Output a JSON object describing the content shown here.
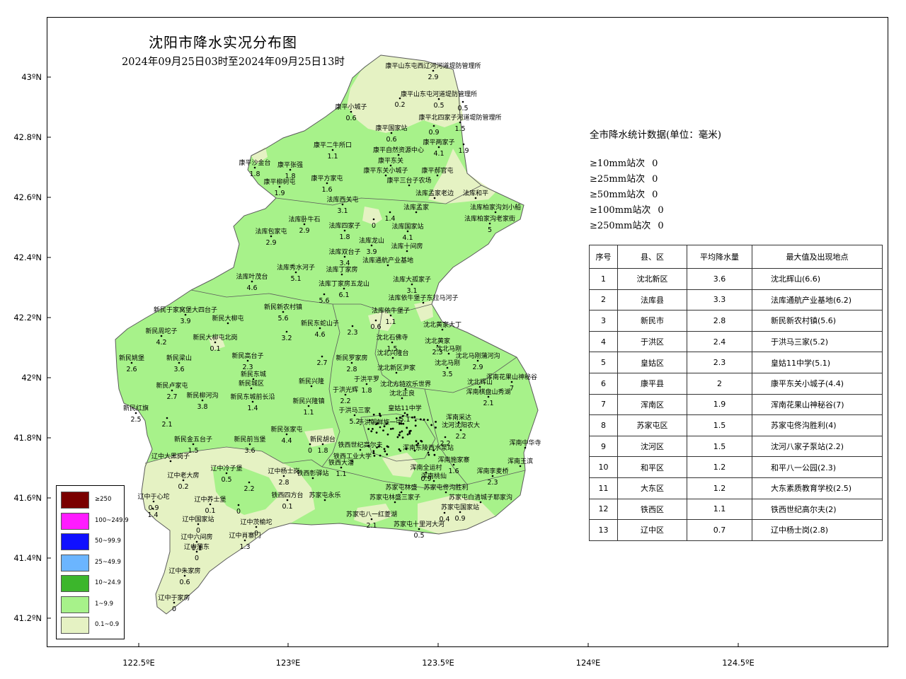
{
  "title": "沈阳市降水实况分布图",
  "subtitle": "2024年09月25日03时至2024年09月25日13时",
  "colors": {
    "light": "#a7f28a",
    "pale": "#e5f2c3",
    "boundary": "#5b5b5b",
    "c250": "#7a0000",
    "c100": "#ff1bff",
    "c50": "#1010ff",
    "c25": "#6bb5ff",
    "c10": "#3cb62c",
    "c1": "#a7f28a",
    "c01": "#e5f2c3"
  },
  "axes": {
    "lat": [
      "43ºN",
      "42.8ºN",
      "42.6ºN",
      "42.4ºN",
      "42.2ºN",
      "42ºN",
      "41.8ºN",
      "41.6ºN",
      "41.4ºN",
      "41.2ºN"
    ],
    "lon": [
      "122.5ºE",
      "123ºE",
      "123.5ºE",
      "124ºE",
      "124.5ºE"
    ]
  },
  "stats": {
    "title": "全市降水统计数据(单位：毫米)",
    "thresholds": [
      {
        "label": "≥10mm站次",
        "count": "0"
      },
      {
        "label": "≥25mm站次",
        "count": "0"
      },
      {
        "label": "≥50mm站次",
        "count": "0"
      },
      {
        "label": "≥100mm站次",
        "count": "0"
      },
      {
        "label": "≥250mm站次",
        "count": "0"
      }
    ]
  },
  "table": {
    "headers": [
      "序号",
      "县、区",
      "平均降水量",
      "最大值及出现地点"
    ],
    "rows": [
      [
        "1",
        "沈北新区",
        "3.6",
        "沈北辉山(6.6)"
      ],
      [
        "2",
        "法库县",
        "3.3",
        "法库通航产业基地(6.2)"
      ],
      [
        "3",
        "新民市",
        "2.8",
        "新民新农村镇(5.6)"
      ],
      [
        "4",
        "于洪区",
        "2.4",
        "于洪马三家(5.2)"
      ],
      [
        "5",
        "皇姑区",
        "2.3",
        "皇姑11中学(5.1)"
      ],
      [
        "6",
        "康平县",
        "2",
        "康平东关小城子(4.4)"
      ],
      [
        "7",
        "浑南区",
        "1.9",
        "浑南花果山神秘谷(7)"
      ],
      [
        "8",
        "苏家屯区",
        "1.5",
        "苏家屯佟沟胜利(4)"
      ],
      [
        "9",
        "沈河区",
        "1.5",
        "沈河八家子泵站(2.2)"
      ],
      [
        "10",
        "和平区",
        "1.2",
        "和平八一公园(2.3)"
      ],
      [
        "11",
        "大东区",
        "1.2",
        "大东素质教育学校(2.5)"
      ],
      [
        "12",
        "铁西区",
        "1.1",
        "铁西世纪高尔夫(2)"
      ],
      [
        "13",
        "辽中区",
        "0.7",
        "辽中杨士岗(2.8)"
      ]
    ]
  },
  "legend": [
    {
      "label": "≥250",
      "color": "#7a0000"
    },
    {
      "label": "100~249.9",
      "color": "#ff1bff"
    },
    {
      "label": "50~99.9",
      "color": "#1010ff"
    },
    {
      "label": "25~49.9",
      "color": "#6bb5ff"
    },
    {
      "label": "10~24.9",
      "color": "#3cb62c"
    },
    {
      "label": "1~9.9",
      "color": "#a7f28a"
    },
    {
      "label": "0.1~0.9",
      "color": "#e5f2c3"
    }
  ],
  "stations": [
    {
      "name": "康平山东屯西辽河河道堤防管理所",
      "value": "2.9"
    },
    {
      "name": "康平山东屯河道堤防管理所",
      "value": "0.5"
    },
    {
      "name": "",
      "value": "0.5"
    },
    {
      "name": "",
      "value": "0.2"
    },
    {
      "name": "康平小城子",
      "value": "0.6"
    },
    {
      "name": "康平北四家子河道堤防管理所",
      "value": "1.5"
    },
    {
      "name": "康平国家站",
      "value": "0.6"
    },
    {
      "name": "",
      "value": "0.9"
    },
    {
      "name": "康平两家子",
      "value": "4.1"
    },
    {
      "name": "",
      "value": "1.9"
    },
    {
      "name": "康平二牛所口",
      "value": "1.1"
    },
    {
      "name": "康平自然资源中心",
      "value": ""
    },
    {
      "name": "康平东关",
      "value": ""
    },
    {
      "name": "康平沙金台",
      "value": "1.8"
    },
    {
      "name": "康平张强",
      "value": "1.8"
    },
    {
      "name": "康平东关小城子",
      "value": ""
    },
    {
      "name": "康平郝官屯",
      "value": ""
    },
    {
      "name": "康平柳树屯",
      "value": "1.9"
    },
    {
      "name": "康平方家屯",
      "value": "1.6"
    },
    {
      "name": "康平三台子农场",
      "value": ""
    },
    {
      "name": "法库孟家老边",
      "value": ""
    },
    {
      "name": "法库和平",
      "value": ""
    },
    {
      "name": "法库西关屯",
      "value": "3.1"
    },
    {
      "name": "法库柏家沟刘小船",
      "value": ""
    },
    {
      "name": "",
      "value": "0"
    },
    {
      "name": "",
      "value": "1.4"
    },
    {
      "name": "法库孟家",
      "value": ""
    },
    {
      "name": "法库柏家沟老家街",
      "value": "5"
    },
    {
      "name": "法库卧牛石",
      "value": "2.9"
    },
    {
      "name": "法库四家子",
      "value": "1.8"
    },
    {
      "name": "法库包家屯",
      "value": "2.9"
    },
    {
      "name": "法库国家站",
      "value": "4.1"
    },
    {
      "name": "法库龙山",
      "value": "3.9"
    },
    {
      "name": "法库十间房",
      "value": ""
    },
    {
      "name": "法库双台子",
      "value": "3.4"
    },
    {
      "name": "法库通航产业基地",
      "value": ""
    },
    {
      "name": "法库秀水河子",
      "value": "5.1"
    },
    {
      "name": "法库丁家房",
      "value": ""
    },
    {
      "name": "法库叶茂台",
      "value": "4.6"
    },
    {
      "name": "法库大孤家子",
      "value": "3.1"
    },
    {
      "name": "法库丁家房五龙山",
      "value": "6.1"
    },
    {
      "name": "",
      "value": "5.6"
    },
    {
      "name": "法库依牛堡子东拉马河子",
      "value": ""
    },
    {
      "name": "新民于家窝堡大四台子",
      "value": "3.9"
    },
    {
      "name": "新民新农村镇",
      "value": "5.6"
    },
    {
      "name": "法库依牛堡子",
      "value": "1.1"
    },
    {
      "name": "新民大柳屯",
      "value": ""
    },
    {
      "name": "新民东蛇山子",
      "value": "4.6"
    },
    {
      "name": "",
      "value": "0.6"
    },
    {
      "name": "沈北黄家大丁",
      "value": ""
    },
    {
      "name": "新民周坨子",
      "value": "4.2"
    },
    {
      "name": "新民大柳屯北岗",
      "value": "0.1"
    },
    {
      "name": "",
      "value": "3.2"
    },
    {
      "name": "",
      "value": "2.3"
    },
    {
      "name": "沈北石佛寺",
      "value": "1.5"
    },
    {
      "name": "沈北黄家",
      "value": "2.3"
    },
    {
      "name": "新民姚堡",
      "value": "2.6"
    },
    {
      "name": "新民梁山",
      "value": "3.6"
    },
    {
      "name": "新民高台子",
      "value": "2.3"
    },
    {
      "name": "",
      "value": "2.7"
    },
    {
      "name": "新民罗家房",
      "value": "2.8"
    },
    {
      "name": "沈北兴隆台",
      "value": ""
    },
    {
      "name": "沈北马刚",
      "value": ""
    },
    {
      "name": "沈北马刚蒲河沟",
      "value": "2.9"
    },
    {
      "name": "沈北新区尹家",
      "value": ""
    },
    {
      "name": "沈北马刚",
      "value": "3.5"
    },
    {
      "name": "浑南花果山神秘谷",
      "value": "7"
    },
    {
      "name": "新民东城",
      "value": ""
    },
    {
      "name": "新民城区",
      "value": ""
    },
    {
      "name": "于洪平罗",
      "value": "1.8"
    },
    {
      "name": "沈北辉山",
      "value": ""
    },
    {
      "name": "新民卢家屯",
      "value": "2.7"
    },
    {
      "name": "新民柳河沟",
      "value": "3.8"
    },
    {
      "name": "新民东城前长沿",
      "value": "1.4"
    },
    {
      "name": "新民兴隆",
      "value": ""
    },
    {
      "name": "于洪光辉",
      "value": "2.2"
    },
    {
      "name": "沈北方特欢乐世界",
      "value": ""
    },
    {
      "name": "浑南棋盘山秀湖",
      "value": "2.1"
    },
    {
      "name": "沈北正良",
      "value": ""
    },
    {
      "name": "新民兴隆镇",
      "value": "1.1"
    },
    {
      "name": "于洪马三家",
      "value": "5.2"
    },
    {
      "name": "皇姑11中学",
      "value": "5.1"
    },
    {
      "name": "新民红旗",
      "value": "2.5"
    },
    {
      "name": "",
      "value": "2.1"
    },
    {
      "name": "浑南采达",
      "value": ""
    },
    {
      "name": "于洪朝鲜族一中",
      "value": ""
    },
    {
      "name": "沈河沈阳农大",
      "value": "2.2"
    },
    {
      "name": "新民金五台子",
      "value": "1.5"
    },
    {
      "name": "新民张家屯",
      "value": "4.4"
    },
    {
      "name": "新民胡台",
      "value": "1.8"
    },
    {
      "name": "",
      "value": "0"
    },
    {
      "name": "",
      "value": "2.2"
    },
    {
      "name": "新民前当堡",
      "value": "3.6"
    },
    {
      "name": "铁西世纪高尔夫",
      "value": ""
    },
    {
      "name": "浑南中华寺",
      "value": ""
    },
    {
      "name": "辽中大黑岗子",
      "value": ""
    },
    {
      "name": "铁西工业大学",
      "value": ""
    },
    {
      "name": "浑南东陵西水泵站",
      "value": ""
    },
    {
      "name": "浑南王滨",
      "value": ""
    },
    {
      "name": "辽中冷子堡",
      "value": "0.5"
    },
    {
      "name": "辽中杨士岗",
      "value": "2.8"
    },
    {
      "name": "铁西大潘",
      "value": "1.1"
    },
    {
      "name": "浑南施家寨",
      "value": "1.6"
    },
    {
      "name": "浑南李麦桥",
      "value": "2.3"
    },
    {
      "name": "辽中老大房",
      "value": "0.2"
    },
    {
      "name": "",
      "value": "2.2"
    },
    {
      "name": "铁西彰驿站",
      "value": ""
    },
    {
      "name": "浑南全运村",
      "value": "0.9"
    },
    {
      "name": "浑南桃仙",
      "value": ""
    },
    {
      "name": "辽中于心坨",
      "value": "0.9"
    },
    {
      "name": "辽中养士堡",
      "value": "0.1"
    },
    {
      "name": "",
      "value": "0"
    },
    {
      "name": "苏家屯林盛",
      "value": ""
    },
    {
      "name": "苏家屯佟沟胜利",
      "value": ""
    },
    {
      "name": "",
      "value": "1.4"
    },
    {
      "name": "铁西四方台",
      "value": "0.1"
    },
    {
      "name": "苏家屯永乐",
      "value": ""
    },
    {
      "name": "苏家屯林盛三家子",
      "value": ""
    },
    {
      "name": "苏家屯白清城子耶家沟",
      "value": ""
    },
    {
      "name": "辽中国家站",
      "value": "0"
    },
    {
      "name": "苏家屯八一红菱湖",
      "value": "2.1"
    },
    {
      "name": "",
      "value": "0.4"
    },
    {
      "name": "苏家屯国家站",
      "value": "0.9"
    },
    {
      "name": "辽中茨榆坨",
      "value": "0"
    },
    {
      "name": "辽中肖寨门",
      "value": "1.3"
    },
    {
      "name": "辽中六间房",
      "value": "0.1"
    },
    {
      "name": "苏家屯十里河大河",
      "value": "0.5"
    },
    {
      "name": "辽中蒲东",
      "value": "0"
    },
    {
      "name": "辽中朱家房",
      "value": "0.6"
    },
    {
      "name": "辽中于家房",
      "value": "0"
    }
  ]
}
